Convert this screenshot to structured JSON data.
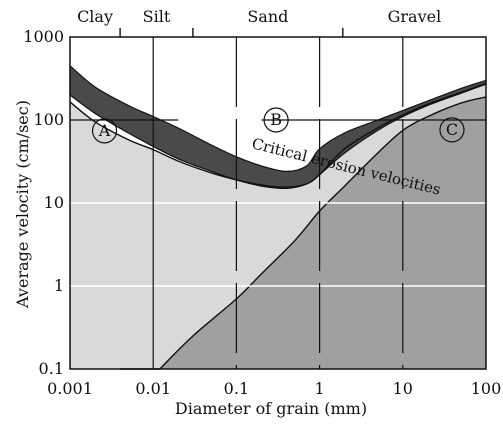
{
  "chart_data": {
    "type": "area",
    "xlabel": "Diameter of grain (mm)",
    "ylabel": "Average velocity (cm/sec)",
    "x_scale": "log",
    "y_scale": "log",
    "xlim": [
      0.001,
      100
    ],
    "ylim": [
      0.1,
      1000
    ],
    "x_ticks": [
      "0.001",
      "0.01",
      "0.1",
      "1",
      "10",
      "100"
    ],
    "y_ticks": [
      "0.1",
      "1",
      "10",
      "100",
      "1000"
    ],
    "grid": true,
    "grain_classes": [
      {
        "label": "Clay",
        "x_end": 0.004
      },
      {
        "label": "Silt",
        "x_start": 0.004,
        "x_end": 0.03
      },
      {
        "label": "Sand",
        "x_start": 0.03,
        "x_end": 1.9
      },
      {
        "label": "Gravel",
        "x_start": 1.9
      }
    ],
    "regions": [
      {
        "label": "A",
        "x": 0.0026,
        "y": 74,
        "fill": "#d9d9d9"
      },
      {
        "label": "B",
        "x": 0.3,
        "y": 100,
        "fill": "#ffffff"
      },
      {
        "label": "C",
        "x": 39,
        "y": 76,
        "fill": "#a0a0a0"
      }
    ],
    "bands": [
      {
        "name": "Critical erosion velocities",
        "fill": "#4a4a4a",
        "x": [
          0.001,
          0.002,
          0.005,
          0.01,
          0.02,
          0.05,
          0.1,
          0.2,
          0.4,
          0.7,
          1,
          2,
          5,
          10,
          20,
          50,
          100
        ],
        "upper": [
          450,
          250,
          150,
          110,
          80,
          50,
          36,
          28,
          24,
          28,
          45,
          70,
          100,
          130,
          170,
          240,
          300
        ],
        "lower": [
          200,
          120,
          70,
          48,
          34,
          24,
          19,
          16,
          15,
          17,
          22,
          40,
          75,
          110,
          150,
          210,
          270
        ]
      }
    ],
    "series": [
      {
        "name": "",
        "stroke": "#111111",
        "x": [
          0.001,
          0.002,
          0.005,
          0.01,
          0.02,
          0.05,
          0.1,
          0.2,
          0.4,
          0.7,
          1,
          2,
          5,
          10,
          20,
          50,
          100
        ],
        "y": [
          165,
          95,
          58,
          44,
          32,
          23,
          19,
          16.5,
          15.5,
          17,
          22,
          45,
          80,
          115,
          155,
          215,
          275
        ]
      },
      {
        "name": "",
        "stroke": "#111111",
        "x": [
          0.012,
          0.03,
          0.1,
          0.2,
          0.5,
          1,
          2,
          5,
          10,
          20,
          50,
          100
        ],
        "y": [
          0.1,
          0.25,
          0.7,
          1.4,
          3.5,
          8,
          16,
          40,
          75,
          110,
          160,
          190
        ]
      }
    ],
    "annotations": [
      {
        "text": "Critical erosion velocities",
        "x": 0.15,
        "y": 46
      }
    ]
  }
}
